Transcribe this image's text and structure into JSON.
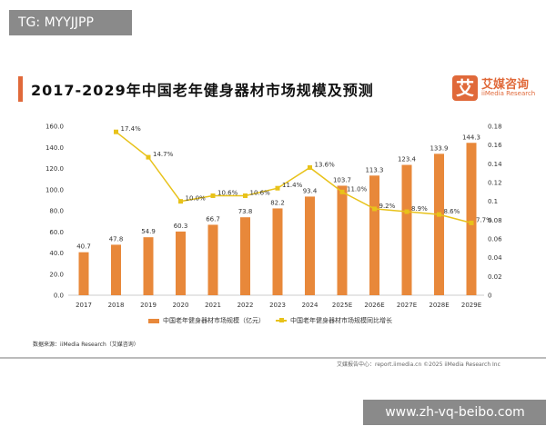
{
  "watermark_top": "TG: MYYJJPP",
  "watermark_bottom": "www.zh-vq-beibo.com",
  "logo": {
    "mark": "艾",
    "cn": "艾媒咨询",
    "en": "iiMedia Research"
  },
  "source": "数据来源：iiMedia Research（艾媒咨询）",
  "footer": "艾媒报告中心：report.iimedia.cn  ©2025  iiMedia Research Inc",
  "chart_data": {
    "type": "bar+line",
    "title": "2017-2029年中国老年健身器材市场规模及预测",
    "categories": [
      "2017",
      "2018",
      "2019",
      "2020",
      "2021",
      "2022",
      "2023",
      "2024",
      "2025E",
      "2026E",
      "2027E",
      "2028E",
      "2029E"
    ],
    "series": [
      {
        "name": "中国老年健身器材市场规模（亿元）",
        "type": "bar",
        "axis": "left",
        "color": "#e8883a",
        "values": [
          40.7,
          47.8,
          54.9,
          60.3,
          66.7,
          73.8,
          82.2,
          93.4,
          103.7,
          113.3,
          123.4,
          133.9,
          144.3
        ],
        "labels": [
          "40.7",
          "47.8",
          "54.9",
          "60.3",
          "66.7",
          "73.8",
          "82.2",
          "93.4",
          "103.7",
          "113.3",
          "123.4",
          "133.9",
          "144.3"
        ]
      },
      {
        "name": "中国老年健身器材市场规模同比增长",
        "type": "line",
        "axis": "right",
        "color": "#e8c21a",
        "values": [
          null,
          0.174,
          0.147,
          0.1,
          0.106,
          0.106,
          0.114,
          0.136,
          0.11,
          0.092,
          0.089,
          0.086,
          0.077
        ],
        "labels": [
          "",
          "17.4%",
          "14.7%",
          "10.0%",
          "10.6%",
          "10.6%",
          "11.4%",
          "13.6%",
          "11.0%",
          "9.2%",
          "8.9%",
          "8.6%",
          "7.7%"
        ]
      }
    ],
    "left_axis": {
      "range": [
        0,
        160
      ],
      "ticks": [
        "0.0",
        "20.0",
        "40.0",
        "60.0",
        "80.0",
        "100.0",
        "120.0",
        "140.0",
        "160.0"
      ]
    },
    "right_axis": {
      "range": [
        0,
        0.18
      ],
      "ticks": [
        "0",
        "0.02",
        "0.04",
        "0.06",
        "0.08",
        "0.1",
        "0.12",
        "0.14",
        "0.16",
        "0.18"
      ]
    },
    "grid": false,
    "legend": "bottom"
  }
}
